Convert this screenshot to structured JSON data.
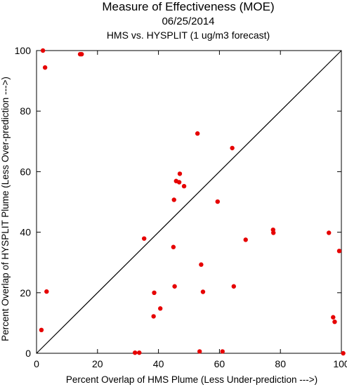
{
  "chart_data": {
    "type": "scatter",
    "title": "Measure of Effectiveness (MOE)",
    "subtitle": "06/25/2014",
    "subtitle2": "HMS vs. HYSPLIT  (1 ug/m3 forecast)",
    "xlabel": "Percent Overlap of HMS Plume (Less Under-prediction --->)",
    "ylabel": "Percent Overlap of HYSPLIT Plume (Less Over-prediction --->)",
    "xlim": [
      0,
      100
    ],
    "ylim": [
      0,
      100
    ],
    "xticks": [
      0,
      20,
      40,
      60,
      80,
      100
    ],
    "yticks": [
      0,
      20,
      40,
      60,
      80,
      100
    ],
    "xtick_labels": [
      "0",
      "20",
      "40",
      "60",
      "80",
      "100"
    ],
    "ytick_labels": [
      "0",
      "20",
      "40",
      "60",
      "80",
      "100"
    ],
    "grid": false,
    "diagonal_line": true,
    "marker_color": "#e60000",
    "points": [
      {
        "x": 2.1,
        "y": 100.0
      },
      {
        "x": 2.8,
        "y": 94.4
      },
      {
        "x": 14.3,
        "y": 98.8
      },
      {
        "x": 14.8,
        "y": 98.8
      },
      {
        "x": 1.6,
        "y": 7.7
      },
      {
        "x": 3.3,
        "y": 20.4
      },
      {
        "x": 32.3,
        "y": 0.2
      },
      {
        "x": 33.7,
        "y": 0.2
      },
      {
        "x": 35.3,
        "y": 37.9
      },
      {
        "x": 38.4,
        "y": 12.2
      },
      {
        "x": 38.6,
        "y": 20.0
      },
      {
        "x": 40.6,
        "y": 14.8
      },
      {
        "x": 44.9,
        "y": 35.1
      },
      {
        "x": 45.1,
        "y": 50.7
      },
      {
        "x": 45.3,
        "y": 22.1
      },
      {
        "x": 45.8,
        "y": 56.9
      },
      {
        "x": 46.8,
        "y": 56.5
      },
      {
        "x": 47.0,
        "y": 59.3
      },
      {
        "x": 48.4,
        "y": 55.2
      },
      {
        "x": 52.8,
        "y": 72.6
      },
      {
        "x": 53.5,
        "y": 0.6
      },
      {
        "x": 54.0,
        "y": 29.3
      },
      {
        "x": 54.6,
        "y": 20.3
      },
      {
        "x": 59.4,
        "y": 50.1
      },
      {
        "x": 61.0,
        "y": 0.6
      },
      {
        "x": 64.2,
        "y": 67.8
      },
      {
        "x": 64.7,
        "y": 22.1
      },
      {
        "x": 68.6,
        "y": 37.5
      },
      {
        "x": 77.6,
        "y": 40.8
      },
      {
        "x": 77.7,
        "y": 39.8
      },
      {
        "x": 95.9,
        "y": 39.8
      },
      {
        "x": 97.3,
        "y": 11.9
      },
      {
        "x": 97.8,
        "y": 10.4
      },
      {
        "x": 99.3,
        "y": 33.8
      },
      {
        "x": 100.6,
        "y": 0.0
      }
    ]
  }
}
